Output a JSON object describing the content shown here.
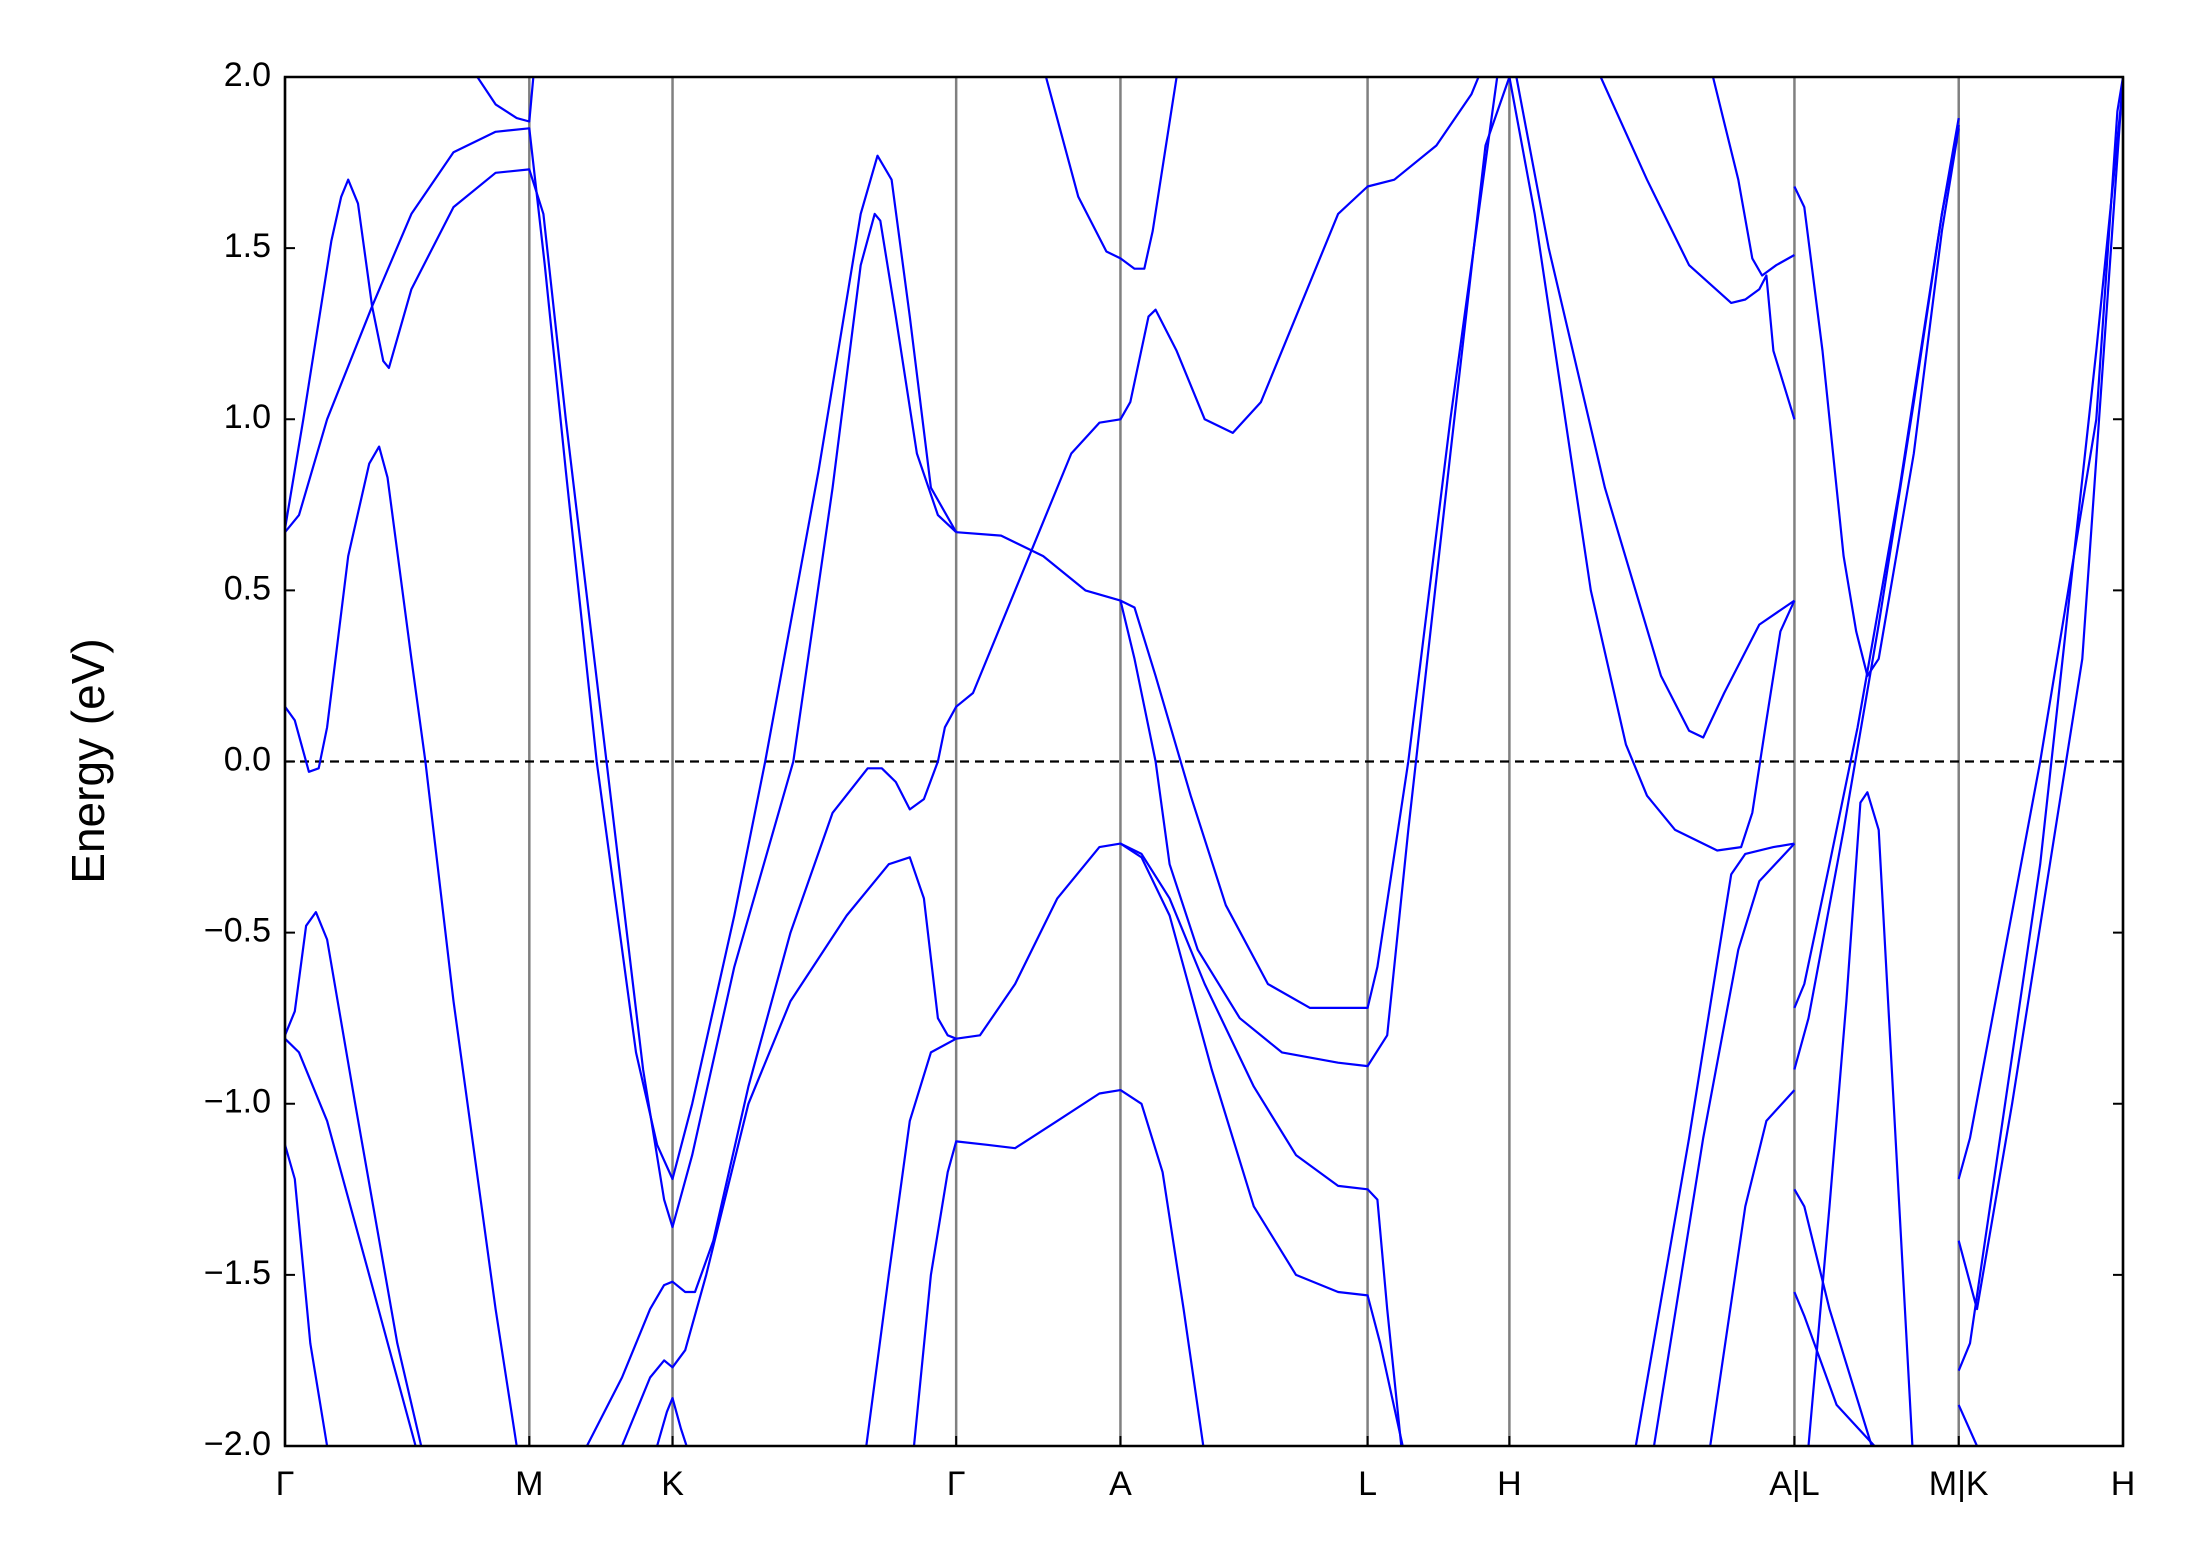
{
  "chart_data": {
    "type": "line",
    "ylabel": "Energy (eV)",
    "color": "#0000ff",
    "xlim": [
      0,
      13.09
    ],
    "ylim": [
      -2,
      2
    ],
    "xticks": [
      {
        "value": 0,
        "label": "Γ"
      },
      {
        "value": 1.74,
        "label": "M"
      },
      {
        "value": 2.76,
        "label": "K"
      },
      {
        "value": 4.78,
        "label": "Γ"
      },
      {
        "value": 5.95,
        "label": "A"
      },
      {
        "value": 7.71,
        "label": "L"
      },
      {
        "value": 8.72,
        "label": "H"
      },
      {
        "value": 10.75,
        "label": "A|L"
      },
      {
        "value": 11.92,
        "label": "M|K"
      },
      {
        "value": 13.09,
        "label": "H"
      }
    ],
    "yticks": [
      {
        "value": 2,
        "label": "2.0"
      },
      {
        "value": 1.5,
        "label": "1.5"
      },
      {
        "value": 1,
        "label": "1.0"
      },
      0.5,
      {
        "value": 0,
        "label": "0.0"
      },
      {
        "value": -0.5,
        "label": "−0.5"
      },
      {
        "value": -1,
        "label": "−1.0"
      },
      {
        "value": -1.5,
        "label": "−1.5"
      },
      {
        "value": -2,
        "label": "−2.0"
      }
    ],
    "vline_color": "#808080",
    "hline": 0,
    "series": [
      {
        "x": [
          1.37,
          1.5,
          1.65,
          1.74,
          1.78
        ],
        "values": [
          2.0,
          1.92,
          1.88,
          1.87,
          2.05
        ]
      },
      {
        "x": [
          0,
          0.1,
          0.3,
          0.62,
          0.9,
          1.2,
          1.5,
          1.74,
          1.85,
          2.0,
          2.22,
          2.5,
          2.65,
          2.76,
          2.9,
          3.2,
          3.42,
          3.8,
          4.1,
          4.22,
          4.32,
          4.45,
          4.6,
          4.78
        ],
        "values": [
          0.67,
          0.72,
          1.0,
          1.33,
          1.6,
          1.78,
          1.84,
          1.85,
          1.45,
          0.85,
          0.0,
          -0.85,
          -1.12,
          -1.22,
          -1.0,
          -0.45,
          0.0,
          0.85,
          1.6,
          1.77,
          1.7,
          1.3,
          0.8,
          0.67
        ]
      },
      {
        "x": [
          0,
          0.13,
          0.33,
          0.4,
          0.45,
          0.52,
          0.62,
          0.7,
          0.74,
          0.9,
          1.2,
          1.5,
          1.74,
          1.84,
          2.0,
          2.29,
          2.55,
          2.7,
          2.76,
          2.9,
          3.2,
          3.62,
          3.9,
          4.1,
          4.2,
          4.24,
          4.35,
          4.5,
          4.65,
          4.78
        ],
        "values": [
          0.68,
          1.0,
          1.52,
          1.65,
          1.7,
          1.63,
          1.33,
          1.17,
          1.15,
          1.38,
          1.62,
          1.72,
          1.73,
          1.6,
          1.0,
          0.0,
          -0.9,
          -1.28,
          -1.36,
          -1.15,
          -0.6,
          0.0,
          0.8,
          1.45,
          1.6,
          1.58,
          1.3,
          0.9,
          0.72,
          0.67
        ]
      },
      {
        "x": [
          0,
          0.07,
          0.17,
          0.24,
          0.3,
          0.45,
          0.6,
          0.67,
          0.73,
          0.9,
          1.0,
          1.2,
          1.5,
          1.65
        ],
        "values": [
          0.16,
          0.12,
          -0.03,
          -0.02,
          0.1,
          0.6,
          0.87,
          0.92,
          0.83,
          0.3,
          0.0,
          -0.7,
          -1.6,
          -2.0
        ]
      },
      {
        "x": [
          0,
          0.07,
          0.15,
          0.22,
          0.3,
          0.5,
          0.8,
          0.97
        ],
        "values": [
          -0.8,
          -0.73,
          -0.48,
          -0.44,
          -0.52,
          -1.0,
          -1.7,
          -2.0
        ]
      },
      {
        "x": [
          0,
          0.1,
          0.3,
          0.6,
          0.93
        ],
        "values": [
          -0.81,
          -0.85,
          -1.05,
          -1.5,
          -2.0
        ]
      },
      {
        "x": [
          0,
          0.07,
          0.18,
          0.3
        ],
        "values": [
          -1.12,
          -1.22,
          -1.7,
          -2.0
        ]
      },
      {
        "x": [
          2.15,
          2.4,
          2.6,
          2.7,
          2.76,
          2.85,
          2.92,
          3.05,
          3.3,
          3.6,
          3.9,
          4.15,
          4.25,
          4.35,
          4.45,
          4.55,
          4.65,
          4.7,
          4.78,
          4.9,
          5.1,
          5.4,
          5.6,
          5.8,
          5.95,
          6.02,
          6.15,
          6.2,
          6.35,
          6.55,
          6.75,
          6.95,
          7.2,
          7.5,
          7.71,
          7.9,
          8.2,
          8.45,
          8.55
        ],
        "values": [
          -2.0,
          -1.8,
          -1.6,
          -1.53,
          -1.52,
          -1.55,
          -1.55,
          -1.4,
          -0.95,
          -0.5,
          -0.15,
          -0.02,
          -0.02,
          -0.06,
          -0.14,
          -0.11,
          0.0,
          0.1,
          0.16,
          0.2,
          0.4,
          0.7,
          0.9,
          0.99,
          1.0,
          1.05,
          1.3,
          1.32,
          1.2,
          1.0,
          0.96,
          1.05,
          1.3,
          1.6,
          1.68,
          1.7,
          1.8,
          1.95,
          2.05
        ]
      },
      {
        "x": [
          2.4,
          2.6,
          2.7,
          2.76,
          2.85,
          3.0,
          3.3,
          3.6,
          4.0,
          4.3,
          4.45,
          4.55,
          4.65,
          4.72,
          4.78,
          4.95,
          5.2,
          5.5,
          5.8,
          5.95,
          6.1,
          6.3,
          6.55,
          6.9,
          7.2,
          7.5,
          7.71,
          7.78,
          7.85,
          7.95
        ],
        "values": [
          -2.0,
          -1.8,
          -1.75,
          -1.77,
          -1.72,
          -1.5,
          -1.0,
          -0.7,
          -0.45,
          -0.3,
          -0.28,
          -0.4,
          -0.75,
          -0.8,
          -0.81,
          -0.8,
          -0.65,
          -0.4,
          -0.25,
          -0.24,
          -0.27,
          -0.4,
          -0.65,
          -0.95,
          -1.15,
          -1.24,
          -1.25,
          -1.28,
          -1.6,
          -2.0
        ]
      },
      {
        "x": [
          2.65,
          2.72,
          2.76,
          2.82,
          2.86
        ],
        "values": [
          -2.0,
          -1.9,
          -1.86,
          -1.95,
          -2.0
        ]
      },
      {
        "x": [
          4.78,
          5.1,
          5.4,
          5.7,
          5.95,
          6.05,
          6.2,
          6.45,
          6.7,
          7.0,
          7.3,
          7.71,
          7.78,
          8.0,
          8.3,
          8.6,
          8.65
        ],
        "values": [
          0.67,
          0.66,
          0.6,
          0.5,
          0.47,
          0.45,
          0.25,
          -0.1,
          -0.42,
          -0.65,
          -0.72,
          -0.72,
          -0.6,
          0.0,
          1.0,
          1.9,
          2.05
        ]
      },
      {
        "x": [
          4.14,
          4.3,
          4.45,
          4.6,
          4.78
        ],
        "values": [
          -2.0,
          -1.5,
          -1.05,
          -0.85,
          -0.81
        ]
      },
      {
        "x": [
          4.48,
          4.6,
          4.72,
          4.78,
          5.0,
          5.2,
          5.5,
          5.8,
          5.95,
          6.1,
          6.25,
          6.4,
          6.54
        ],
        "values": [
          -2.0,
          -1.5,
          -1.2,
          -1.11,
          -1.12,
          -1.13,
          -1.05,
          -0.97,
          -0.96,
          -1.0,
          -1.2,
          -1.6,
          -2.0
        ]
      },
      {
        "x": [
          5.95,
          6.1,
          6.3,
          6.6,
          6.9,
          7.2,
          7.5,
          7.71,
          7.8,
          7.96
        ],
        "values": [
          -0.24,
          -0.28,
          -0.45,
          -0.9,
          -1.3,
          -1.5,
          -1.55,
          -1.56,
          -1.7,
          -2.0
        ]
      },
      {
        "x": [
          5.95,
          6.05,
          6.2,
          6.3,
          6.5,
          6.8,
          7.1,
          7.5,
          7.71,
          7.85,
          8.0,
          8.3,
          8.55,
          8.72
        ],
        "values": [
          0.47,
          0.3,
          0.0,
          -0.3,
          -0.55,
          -0.75,
          -0.85,
          -0.88,
          -0.89,
          -0.8,
          -0.2,
          0.9,
          1.8,
          2.0
        ]
      },
      {
        "x": [
          5.42,
          5.65,
          5.85,
          5.95,
          6.05,
          6.12,
          6.18,
          6.35
        ],
        "values": [
          2.0,
          1.65,
          1.49,
          1.47,
          1.44,
          1.44,
          1.55,
          2.0
        ]
      },
      {
        "x": [
          8.72,
          8.9,
          9.3,
          9.55,
          9.7,
          9.9,
          10.2,
          10.37,
          10.45,
          10.55,
          10.65,
          10.75
        ],
        "values": [
          2.0,
          1.6,
          0.5,
          0.05,
          -0.1,
          -0.2,
          -0.26,
          -0.25,
          -0.15,
          0.12,
          0.38,
          0.47
        ]
      },
      {
        "x": [
          8.77,
          9.0,
          9.4,
          9.8,
          10.0,
          10.1,
          10.25,
          10.5,
          10.75
        ],
        "values": [
          2.0,
          1.5,
          0.8,
          0.25,
          0.09,
          0.07,
          0.2,
          0.4,
          0.47
        ]
      },
      {
        "x": [
          9.37,
          9.7,
          10.0,
          10.3,
          10.4,
          10.5,
          10.55,
          10.6,
          10.75
        ],
        "values": [
          2.0,
          1.7,
          1.45,
          1.34,
          1.35,
          1.38,
          1.42,
          1.2,
          1.0
        ]
      },
      {
        "x": [
          10.17,
          10.35,
          10.45,
          10.52,
          10.62,
          10.75
        ],
        "values": [
          2.0,
          1.7,
          1.47,
          1.42,
          1.45,
          1.48
        ]
      },
      {
        "x": [
          9.62,
          10.0,
          10.3,
          10.4,
          10.6,
          10.75
        ],
        "values": [
          -2.0,
          -1.1,
          -0.33,
          -0.27,
          -0.25,
          -0.24
        ]
      },
      {
        "x": [
          9.75,
          10.1,
          10.35,
          10.5,
          10.75
        ],
        "values": [
          -2.0,
          -1.1,
          -0.55,
          -0.35,
          -0.24
        ]
      },
      {
        "x": [
          10.15,
          10.4,
          10.55,
          10.75
        ],
        "values": [
          -2.0,
          -1.3,
          -1.05,
          -0.96
        ]
      },
      {
        "x": [
          10.75,
          10.82,
          10.95,
          11.1,
          11.19,
          11.27,
          11.35,
          11.6,
          11.8,
          11.92
        ],
        "values": [
          1.68,
          1.62,
          1.2,
          0.6,
          0.38,
          0.25,
          0.3,
          0.9,
          1.55,
          1.85
        ]
      },
      {
        "x": [
          10.75,
          10.82,
          11.0,
          11.2,
          11.5,
          11.8,
          11.92
        ],
        "values": [
          -0.72,
          -0.65,
          -0.3,
          0.1,
          0.8,
          1.6,
          1.88
        ]
      },
      {
        "x": [
          10.75,
          10.85,
          11.1,
          11.35,
          11.6,
          11.8,
          11.92
        ],
        "values": [
          -0.9,
          -0.75,
          -0.2,
          0.4,
          1.05,
          1.6,
          1.86
        ]
      },
      {
        "x": [
          10.75,
          10.82,
          11.0,
          11.3
        ],
        "values": [
          -1.25,
          -1.3,
          -1.6,
          -2.0
        ]
      },
      {
        "x": [
          10.75,
          10.82,
          11.05,
          11.32
        ],
        "values": [
          -1.55,
          -1.62,
          -1.88,
          -2.0
        ]
      },
      {
        "x": [
          10.85,
          11.0,
          11.12,
          11.22,
          11.27,
          11.35,
          11.59
        ],
        "values": [
          -2.0,
          -1.3,
          -0.7,
          -0.12,
          -0.09,
          -0.2,
          -2.0
        ]
      },
      {
        "x": [
          11.92,
          12.0,
          12.5,
          12.9,
          13.05,
          13.09
        ],
        "values": [
          -1.22,
          -1.1,
          0.0,
          1.0,
          1.9,
          2.0
        ]
      },
      {
        "x": [
          11.92,
          12.0,
          12.5,
          12.9,
          13.09
        ],
        "values": [
          -1.78,
          -1.7,
          -0.3,
          1.2,
          1.98
        ]
      },
      {
        "x": [
          11.92,
          12.05,
          12.3,
          12.8,
          13.09
        ],
        "values": [
          -1.4,
          -1.6,
          -1.0,
          0.3,
          2.0
        ]
      },
      {
        "x": [
          11.92,
          12.05
        ],
        "values": [
          -1.88,
          -2.0
        ]
      }
    ]
  }
}
